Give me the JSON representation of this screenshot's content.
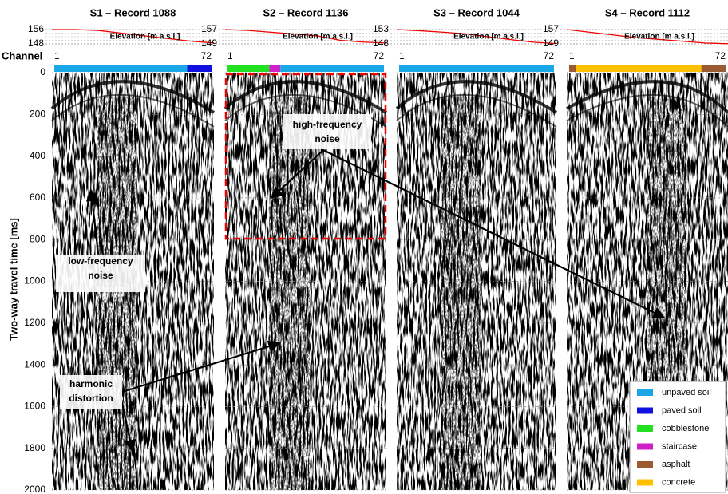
{
  "y_axis": {
    "label": "Two-way travel time [ms]",
    "ylim": [
      0,
      2000
    ],
    "yticks": [
      0,
      200,
      400,
      600,
      800,
      1000,
      1200,
      1400,
      1600,
      1800,
      2000
    ]
  },
  "channel": {
    "label": "Channel",
    "xlim": [
      1,
      72
    ],
    "xticks": [
      1,
      72
    ]
  },
  "elevation_label": "Elevation [m a.s.l.]",
  "panels": [
    {
      "title": "S1 – Record 1088",
      "elevation": {
        "ylim": [
          148,
          156
        ],
        "yticks": [
          148,
          156
        ],
        "values": [
          156,
          156,
          155.5,
          154,
          152.5,
          151,
          149.5,
          148.5
        ]
      },
      "surface": [
        {
          "type": "unpaved soil",
          "from": 1,
          "to": 61
        },
        {
          "type": "paved soil",
          "from": 61,
          "to": 72
        }
      ]
    },
    {
      "title": "S2 – Record 1136",
      "elevation": {
        "ylim": [
          149,
          157
        ],
        "yticks": [
          149,
          157
        ],
        "values": [
          157,
          156.5,
          155.5,
          154.5,
          153.5,
          151,
          150,
          149.5
        ]
      },
      "surface": [
        {
          "type": "cobblestone",
          "from": 1,
          "to": 20
        },
        {
          "type": "staircase",
          "from": 20,
          "to": 25
        },
        {
          "type": "unpaved soil",
          "from": 25,
          "to": 72
        }
      ]
    },
    {
      "title": "S3 – Record 1044",
      "elevation": {
        "ylim": [
          148,
          153
        ],
        "yticks": [
          148,
          153
        ],
        "values": [
          153,
          152.6,
          152.1,
          151.5,
          150.5,
          149.5,
          148.6,
          148.1
        ]
      },
      "surface": [
        {
          "type": "unpaved soil",
          "from": 1,
          "to": 72
        }
      ]
    },
    {
      "title": "S4 – Record 1112",
      "elevation": {
        "ylim": [
          149,
          157
        ],
        "yticks": [
          149,
          157
        ],
        "values": [
          157,
          155.5,
          154,
          152.5,
          151.5,
          150.5,
          149.5,
          149.1
        ]
      },
      "surface": [
        {
          "type": "asphalt",
          "from": 1,
          "to": 4
        },
        {
          "type": "concrete",
          "from": 4,
          "to": 61
        },
        {
          "type": "asphalt",
          "from": 61,
          "to": 72
        }
      ]
    }
  ],
  "legend": [
    {
      "name": "unpaved soil",
      "color": "#1aa7e6"
    },
    {
      "name": "paved soil",
      "color": "#1010e0"
    },
    {
      "name": "cobblestone",
      "color": "#22e022"
    },
    {
      "name": "staircase",
      "color": "#d020c8"
    },
    {
      "name": "asphalt",
      "color": "#9a5b32"
    },
    {
      "name": "concrete",
      "color": "#ffc000"
    }
  ],
  "annotations": {
    "low_frequency": "low-frequency noise",
    "harmonic": "harmonic distortion",
    "high_frequency": "high-frequency noise"
  }
}
